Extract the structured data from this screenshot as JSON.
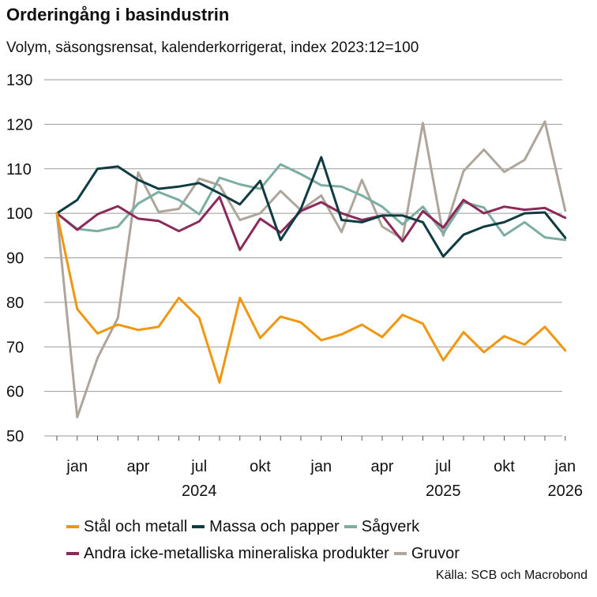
{
  "chart_data": {
    "type": "line",
    "title": "Orderingång i basindustrin",
    "subtitle": "Volym, säsongsrensat, kalenderkorrigerat, index 2023:12=100",
    "ylim": [
      50,
      130
    ],
    "yticks": [
      "130",
      "120",
      "110",
      "100",
      "90",
      "80",
      "70",
      "60",
      "50"
    ],
    "month_ticks": [
      "jan",
      "apr",
      "jul",
      "okt",
      "jan",
      "apr",
      "jul",
      "okt",
      "jan"
    ],
    "year_ticks": [
      "2024",
      "2025",
      "2026"
    ],
    "x": [
      "2023-12",
      "2024-01",
      "2024-02",
      "2024-03",
      "2024-04",
      "2024-05",
      "2024-06",
      "2024-07",
      "2024-08",
      "2024-09",
      "2024-10",
      "2024-11",
      "2024-12",
      "2025-01",
      "2025-02",
      "2025-03",
      "2025-04",
      "2025-05",
      "2025-06",
      "2025-07",
      "2025-08",
      "2025-09",
      "2025-10",
      "2025-11",
      "2025-12",
      "2026-01"
    ],
    "series": [
      {
        "name": "Stål och metall",
        "color": "#f0960f",
        "values": [
          100,
          78.5,
          73,
          75,
          73.8,
          74.5,
          81,
          76.5,
          62,
          81,
          72,
          76.8,
          75.5,
          71.5,
          72.8,
          75,
          72.2,
          77.2,
          75.2,
          67,
          73.3,
          68.8,
          72.4,
          70.5,
          74.5,
          69.2
        ]
      },
      {
        "name": "Massa och papper",
        "color": "#0e3c40",
        "values": [
          100,
          103,
          110,
          110.5,
          107.5,
          105.5,
          106,
          106.8,
          104.5,
          102,
          107.3,
          94,
          101,
          112.6,
          98.5,
          98,
          99.5,
          99.5,
          98,
          90.3,
          95.2,
          97,
          98,
          100,
          100.2,
          94.5
        ]
      },
      {
        "name": "Sågverk",
        "color": "#7bada1",
        "values": [
          100,
          96.5,
          96,
          97,
          102.2,
          104.8,
          103,
          99.8,
          108,
          106.5,
          105.5,
          111,
          108.8,
          106.3,
          106,
          104,
          101.5,
          97.5,
          101.5,
          95.5,
          102.5,
          101.3,
          95,
          98,
          94.6,
          94
        ]
      },
      {
        "name": "Andra icke-metalliska mineraliska produkter",
        "color": "#8b2a5a",
        "values": [
          100,
          96.3,
          99.8,
          101.6,
          98.8,
          98.3,
          96,
          98.2,
          103.7,
          91.8,
          98.8,
          95.7,
          100.5,
          102.5,
          100,
          98.5,
          99.5,
          93.7,
          100.5,
          96.8,
          103,
          100,
          101.5,
          100.8,
          101.2,
          99
        ]
      },
      {
        "name": "Gruvor",
        "color": "#aea59b",
        "values": [
          100,
          54.2,
          67.5,
          76.5,
          109.2,
          100.3,
          101,
          107.8,
          106.3,
          98.5,
          100,
          105,
          100.7,
          104,
          95.8,
          107.5,
          97,
          94.3,
          120.3,
          95,
          109.5,
          114.3,
          109.3,
          112,
          120.6,
          100.6
        ]
      }
    ],
    "source": "Källa: SCB och Macrobond"
  }
}
